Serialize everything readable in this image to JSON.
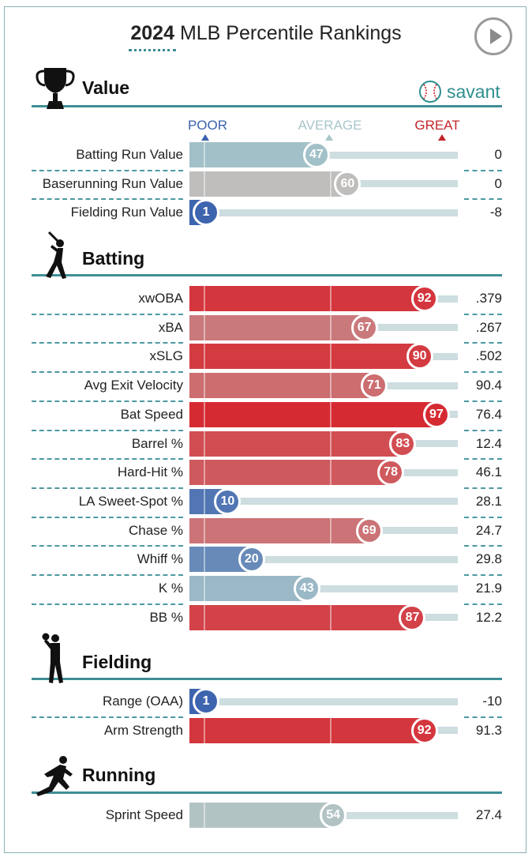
{
  "header": {
    "year": "2024",
    "title": "MLB Percentile Rankings"
  },
  "brand": {
    "name": "savant"
  },
  "scale_labels": {
    "poor": "POOR",
    "average": "AVERAGE",
    "great": "GREAT"
  },
  "colors": {
    "poor": "#3b62ad",
    "average": "#a9c6ca",
    "great": "#d7232b",
    "section_line": "#3f8e96"
  },
  "chart_data": {
    "type": "bar",
    "title": "2024 MLB Percentile Rankings",
    "xlim": [
      0,
      100
    ],
    "sections": [
      {
        "name": "Value",
        "icon": "trophy-icon",
        "metrics": [
          {
            "label": "Batting Run Value",
            "percentile": 47,
            "value": "0"
          },
          {
            "label": "Baserunning Run Value",
            "percentile": 60,
            "value": "0"
          },
          {
            "label": "Fielding Run Value",
            "percentile": 1,
            "value": "-8"
          }
        ]
      },
      {
        "name": "Batting",
        "icon": "batter-icon",
        "metrics": [
          {
            "label": "xwOBA",
            "percentile": 92,
            "value": ".379"
          },
          {
            "label": "xBA",
            "percentile": 67,
            "value": ".267"
          },
          {
            "label": "xSLG",
            "percentile": 90,
            "value": ".502"
          },
          {
            "label": "Avg Exit Velocity",
            "percentile": 71,
            "value": "90.4"
          },
          {
            "label": "Bat Speed",
            "percentile": 97,
            "value": "76.4"
          },
          {
            "label": "Barrel %",
            "percentile": 83,
            "value": "12.4"
          },
          {
            "label": "Hard-Hit %",
            "percentile": 78,
            "value": "46.1"
          },
          {
            "label": "LA Sweet-Spot %",
            "percentile": 10,
            "value": "28.1"
          },
          {
            "label": "Chase %",
            "percentile": 69,
            "value": "24.7"
          },
          {
            "label": "Whiff %",
            "percentile": 20,
            "value": "29.8"
          },
          {
            "label": "K %",
            "percentile": 43,
            "value": "21.9"
          },
          {
            "label": "BB %",
            "percentile": 87,
            "value": "12.2"
          }
        ]
      },
      {
        "name": "Fielding",
        "icon": "fielder-icon",
        "metrics": [
          {
            "label": "Range (OAA)",
            "percentile": 1,
            "value": "-10"
          },
          {
            "label": "Arm Strength",
            "percentile": 92,
            "value": "91.3"
          }
        ]
      },
      {
        "name": "Running",
        "icon": "runner-icon",
        "metrics": [
          {
            "label": "Sprint Speed",
            "percentile": 54,
            "value": "27.4"
          }
        ]
      }
    ]
  }
}
